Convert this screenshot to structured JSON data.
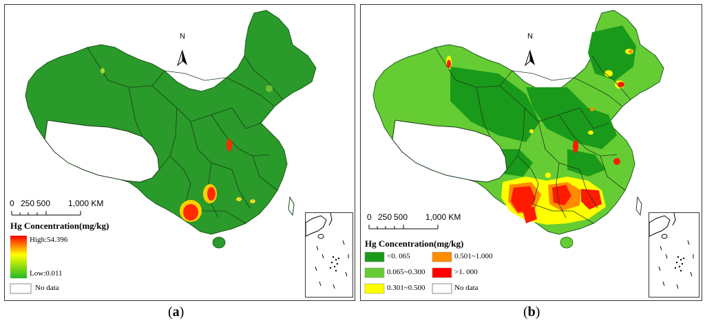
{
  "panel_a": {
    "caption_label": "a",
    "north_label": "N",
    "scale": {
      "ticks": [
        "0",
        "250",
        "500",
        "1,000 KM"
      ]
    },
    "legend": {
      "title": "Hg Concentration(mg/kg)",
      "high_label": "High:54.396",
      "low_label": "Low:0.011",
      "no_data_label": "No data",
      "ramp_colors": [
        "#ff0000",
        "#ffff00",
        "#22b822"
      ]
    }
  },
  "panel_b": {
    "caption_label": "b",
    "north_label": "N",
    "scale": {
      "ticks": [
        "0",
        "250",
        "500",
        "1,000 KM"
      ]
    },
    "legend": {
      "title": "Hg Concentration(mg/kg)",
      "classes": [
        {
          "label": "<0. 065",
          "color": "#1a9a1a"
        },
        {
          "label": "0.065~0.300",
          "color": "#66cc33"
        },
        {
          "label": "0.301~0.500",
          "color": "#ffff00"
        },
        {
          "label": "0.501~1.000",
          "color": "#ff8c00"
        },
        {
          "label": ">1. 000",
          "color": "#ff0000"
        },
        {
          "label": "No data",
          "color": "#ffffff"
        }
      ]
    }
  },
  "caption_open": "(",
  "caption_close": ")"
}
